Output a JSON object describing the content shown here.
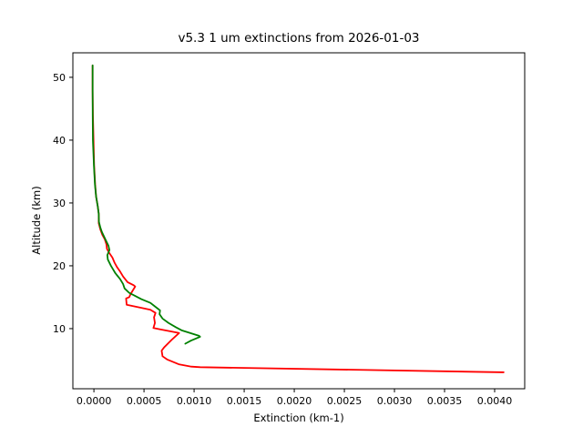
{
  "figure": {
    "background": "#ffffff",
    "spine_color": "#000000",
    "tick_color": "#000000",
    "text_color": "#000000"
  },
  "chart_data": {
    "type": "line",
    "title": "v5.3 1 um extinctions from 2026-01-03",
    "xlabel": "Extinction (km-1)",
    "ylabel": "Altitude (km)",
    "xlim": [
      -0.00021,
      0.0043
    ],
    "ylim": [
      0.43,
      53.9
    ],
    "xticks": [
      0.0,
      0.0005,
      0.001,
      0.0015,
      0.002,
      0.0025,
      0.003,
      0.0035,
      0.004
    ],
    "xtick_labels": [
      "0.0000",
      "0.0005",
      "0.0010",
      "0.0015",
      "0.0020",
      "0.0025",
      "0.0030",
      "0.0035",
      "0.0040"
    ],
    "yticks": [
      10,
      20,
      30,
      40,
      50
    ],
    "ytick_labels": [
      "10",
      "20",
      "30",
      "40",
      "50"
    ],
    "grid": false,
    "legend": null,
    "series": [
      {
        "name": "red-extinction-profile",
        "color": "#ff0000",
        "points_format": "[extinction_km-1, altitude_km]",
        "points": [
          [
            -1.3e-05,
            51.9
          ],
          [
            -1.3e-05,
            48.0
          ],
          [
            -1e-05,
            44.0
          ],
          [
            -4e-06,
            40.0
          ],
          [
            2e-06,
            36.0
          ],
          [
            1.2e-05,
            33.0
          ],
          [
            2.2e-05,
            31.0
          ],
          [
            3.8e-05,
            29.5
          ],
          [
            4.8e-05,
            28.3
          ],
          [
            4.8e-05,
            26.8
          ],
          [
            6.4e-05,
            25.8
          ],
          [
            8.5e-05,
            24.9
          ],
          [
            0.000109,
            24.2
          ],
          [
            0.000125,
            23.4
          ],
          [
            0.00013,
            22.7
          ],
          [
            0.000155,
            22.0
          ],
          [
            0.000185,
            21.3
          ],
          [
            0.000206,
            20.5
          ],
          [
            0.00023,
            19.8
          ],
          [
            0.000261,
            19.1
          ],
          [
            0.000291,
            18.3
          ],
          [
            0.000336,
            17.4
          ],
          [
            0.000397,
            16.9
          ],
          [
            0.000412,
            16.7
          ],
          [
            0.000366,
            15.5
          ],
          [
            0.000352,
            15.0
          ],
          [
            0.000321,
            14.8
          ],
          [
            0.000327,
            13.8
          ],
          [
            0.000473,
            13.3
          ],
          [
            0.000564,
            13.0
          ],
          [
            0.000615,
            12.5
          ],
          [
            0.0006,
            11.8
          ],
          [
            0.000609,
            10.9
          ],
          [
            0.000594,
            10.1
          ],
          [
            0.000655,
            9.9
          ],
          [
            0.00085,
            9.3
          ],
          [
            0.000775,
            8.2
          ],
          [
            0.0007,
            7.0
          ],
          [
            0.000676,
            6.5
          ],
          [
            0.000685,
            5.6
          ],
          [
            0.00073,
            5.1
          ],
          [
            0.000852,
            4.3
          ],
          [
            0.000973,
            3.95
          ],
          [
            0.00106,
            3.86
          ],
          [
            0.00409,
            3.05
          ]
        ]
      },
      {
        "name": "green-extinction-profile",
        "color": "#008000",
        "points_format": "[extinction_km-1, altitude_km]",
        "points": [
          [
            -1.3e-05,
            51.9
          ],
          [
            -1.3e-05,
            48.0
          ],
          [
            -1.2e-05,
            44.0
          ],
          [
            -1e-05,
            40.0
          ],
          [
            0.0,
            36.0
          ],
          [
            1e-05,
            33.0
          ],
          [
            2.2e-05,
            31.0
          ],
          [
            3.8e-05,
            29.5
          ],
          [
            4.8e-05,
            28.3
          ],
          [
            5e-05,
            27.0
          ],
          [
            6.4e-05,
            26.1
          ],
          [
            7.9e-05,
            25.4
          ],
          [
            0.000115,
            24.2
          ],
          [
            0.000145,
            23.2
          ],
          [
            0.000155,
            22.5
          ],
          [
            0.000134,
            21.7
          ],
          [
            0.000139,
            21.0
          ],
          [
            0.00017,
            20.0
          ],
          [
            0.000215,
            18.8
          ],
          [
            0.000261,
            17.9
          ],
          [
            0.000291,
            17.1
          ],
          [
            0.000306,
            16.4
          ],
          [
            0.000352,
            15.7
          ],
          [
            0.000412,
            15.2
          ],
          [
            0.000473,
            14.7
          ],
          [
            0.000564,
            14.1
          ],
          [
            0.00062,
            13.4
          ],
          [
            0.00066,
            12.9
          ],
          [
            0.000655,
            12.3
          ],
          [
            0.000685,
            11.6
          ],
          [
            0.000745,
            10.9
          ],
          [
            0.00082,
            10.2
          ],
          [
            0.00088,
            9.7
          ],
          [
            0.00092,
            9.5
          ],
          [
            0.00105,
            8.85
          ],
          [
            0.00106,
            8.7
          ],
          [
            0.00097,
            8.1
          ],
          [
            0.000912,
            7.6
          ]
        ]
      }
    ]
  }
}
